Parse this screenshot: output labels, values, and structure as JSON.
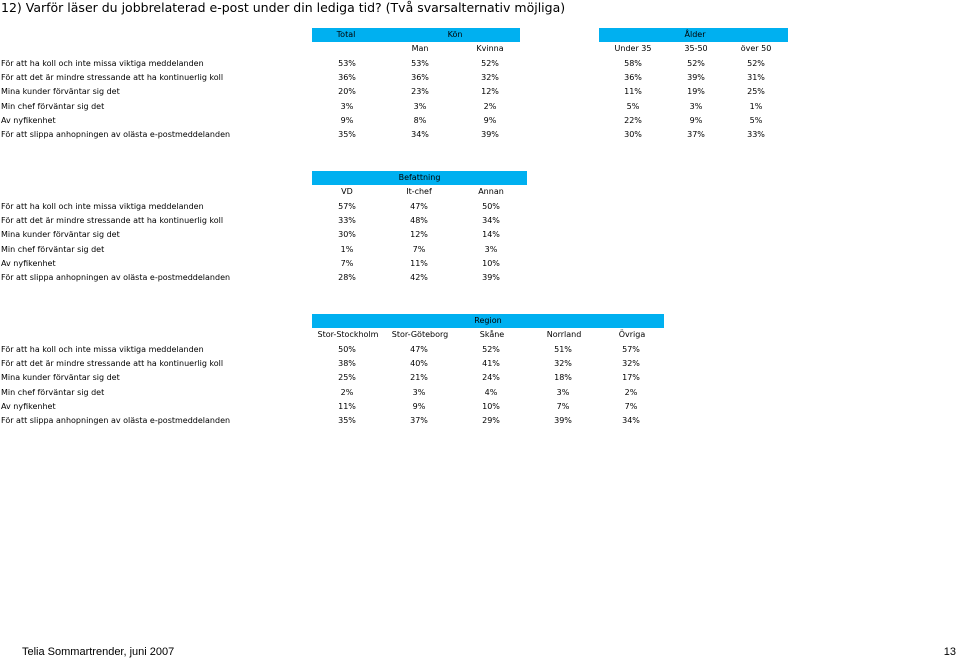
{
  "page": {
    "title": "12) Varför läser du jobbrelaterad e-post under din lediga tid? (Två svarsalternativ möjliga)",
    "footer_left": "Telia Sommartrender, juni 2007",
    "page_number": "13",
    "accent_color": "#00b0f0"
  },
  "tables": [
    {
      "groups": [
        {
          "label": "Total"
        },
        {
          "label": "Kön"
        },
        {
          "label": "Ålder"
        }
      ],
      "columns": [
        "",
        "Man",
        "Kvinna",
        "Under 35",
        "35-50",
        "över 50"
      ],
      "rows": [
        {
          "label": "För att ha koll och inte missa viktiga meddelanden",
          "values": [
            "53%",
            "53%",
            "52%",
            "58%",
            "52%",
            "52%"
          ]
        },
        {
          "label": "För att det är mindre stressande att ha kontinuerlig koll",
          "values": [
            "36%",
            "36%",
            "32%",
            "36%",
            "39%",
            "31%"
          ]
        },
        {
          "label": "Mina kunder förväntar sig det",
          "values": [
            "20%",
            "23%",
            "12%",
            "11%",
            "19%",
            "25%"
          ]
        },
        {
          "label": "Min chef förväntar sig det",
          "values": [
            "3%",
            "3%",
            "2%",
            "5%",
            "3%",
            "1%"
          ]
        },
        {
          "label": "Av nyfikenhet",
          "values": [
            "9%",
            "8%",
            "9%",
            "22%",
            "9%",
            "5%"
          ]
        },
        {
          "label": "För att slippa anhopningen av olästa e-postmeddelanden",
          "values": [
            "35%",
            "34%",
            "39%",
            "30%",
            "37%",
            "33%"
          ]
        }
      ]
    },
    {
      "groups": [
        {
          "label": "Befattning"
        }
      ],
      "columns": [
        "VD",
        "It-chef",
        "Annan"
      ],
      "rows": [
        {
          "label": "För att ha koll och inte missa viktiga meddelanden",
          "values": [
            "57%",
            "47%",
            "50%"
          ]
        },
        {
          "label": "För att det är mindre stressande att ha kontinuerlig koll",
          "values": [
            "33%",
            "48%",
            "34%"
          ]
        },
        {
          "label": "Mina kunder förväntar sig det",
          "values": [
            "30%",
            "12%",
            "14%"
          ]
        },
        {
          "label": "Min chef förväntar sig det",
          "values": [
            "1%",
            "7%",
            "3%"
          ]
        },
        {
          "label": "Av nyfikenhet",
          "values": [
            "7%",
            "11%",
            "10%"
          ]
        },
        {
          "label": "För att slippa anhopningen av olästa e-postmeddelanden",
          "values": [
            "28%",
            "42%",
            "39%"
          ]
        }
      ]
    },
    {
      "groups": [
        {
          "label": "Region"
        }
      ],
      "columns": [
        "Stor-Stockholm",
        "Stor-Göteborg",
        "Skåne",
        "Norrland",
        "Övriga"
      ],
      "rows": [
        {
          "label": "För att ha koll och inte missa viktiga meddelanden",
          "values": [
            "50%",
            "47%",
            "52%",
            "51%",
            "57%"
          ]
        },
        {
          "label": "För att det är mindre stressande att ha kontinuerlig koll",
          "values": [
            "38%",
            "40%",
            "41%",
            "32%",
            "32%"
          ]
        },
        {
          "label": "Mina kunder förväntar sig det",
          "values": [
            "25%",
            "21%",
            "24%",
            "18%",
            "17%"
          ]
        },
        {
          "label": "Min chef förväntar sig det",
          "values": [
            "2%",
            "3%",
            "4%",
            "3%",
            "2%"
          ]
        },
        {
          "label": "Av nyfikenhet",
          "values": [
            "11%",
            "9%",
            "10%",
            "7%",
            "7%"
          ]
        },
        {
          "label": "För att slippa anhopningen av olästa e-postmeddelanden",
          "values": [
            "35%",
            "37%",
            "29%",
            "39%",
            "34%"
          ]
        }
      ]
    }
  ]
}
